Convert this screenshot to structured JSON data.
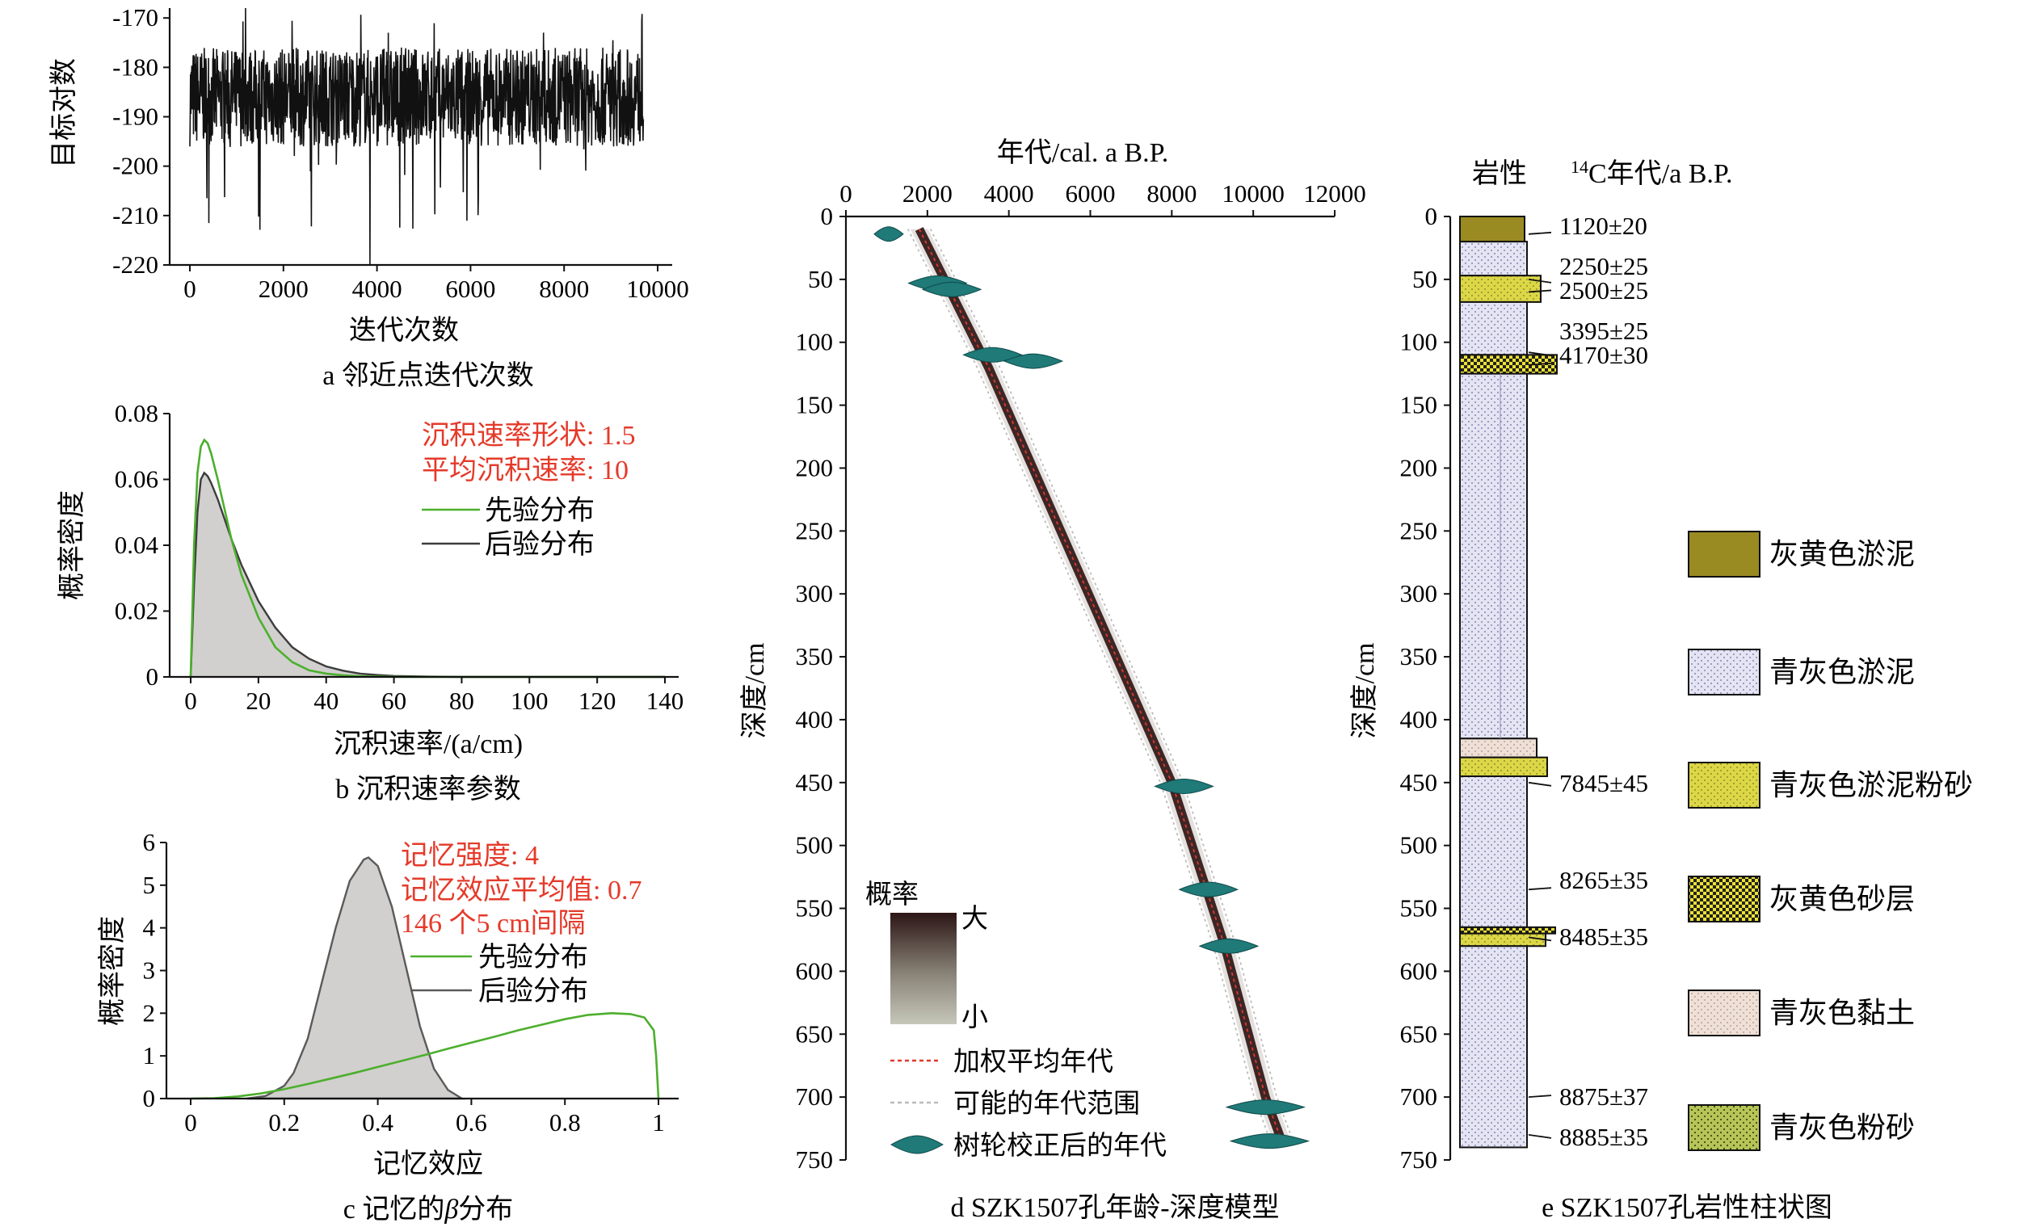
{
  "chart_data": [
    {
      "panel": "a",
      "type": "line",
      "caption": "a 邻近点迭代次数",
      "xlabel": "迭代次数",
      "ylabel": "目标对数",
      "xlim": [
        0,
        10000
      ],
      "ylim": [
        -220,
        -168
      ],
      "xticks": [
        0,
        2000,
        4000,
        6000,
        8000,
        10000
      ],
      "yticks": [
        -220,
        -210,
        -200,
        -190,
        -180,
        -170
      ],
      "trace": {
        "n_iterations": 9700,
        "typical_range": [
          -196,
          -176
        ],
        "mean": -186,
        "max": -168,
        "min": -220
      },
      "color": "#111111"
    },
    {
      "panel": "b",
      "type": "area",
      "caption": "b 沉积速率参数",
      "xlabel": "沉积速率/(a/cm)",
      "ylabel": "概率密度",
      "xlim": [
        0,
        140
      ],
      "ylim": [
        0,
        0.08
      ],
      "xticks": [
        0,
        20,
        40,
        60,
        80,
        100,
        120,
        140
      ],
      "yticks": [
        0,
        0.02,
        0.04,
        0.06,
        0.08
      ],
      "annotations": [
        "沉积速率形状: 1.5",
        "平均沉积速率: 10"
      ],
      "legend": [
        "先验分布",
        "后验分布"
      ],
      "x": [
        0,
        1,
        2,
        3,
        4,
        5,
        6,
        8,
        10,
        12,
        15,
        20,
        25,
        30,
        35,
        40,
        45,
        50,
        55,
        60,
        70,
        80,
        100,
        120,
        140
      ],
      "series": [
        {
          "name": "先验分布",
          "color": "#4caf2d",
          "values": [
            0,
            0.04,
            0.062,
            0.07,
            0.072,
            0.071,
            0.068,
            0.06,
            0.051,
            0.042,
            0.031,
            0.018,
            0.009,
            0.0045,
            0.002,
            0.001,
            0.0005,
            0.0002,
            0.0001,
            5e-05,
            0,
            0,
            0,
            0,
            0
          ]
        },
        {
          "name": "后验分布",
          "color": "#3c3c3c",
          "fill": "#d1d0ce",
          "values": [
            0,
            0.028,
            0.05,
            0.06,
            0.062,
            0.061,
            0.059,
            0.054,
            0.048,
            0.042,
            0.034,
            0.023,
            0.015,
            0.009,
            0.0055,
            0.0032,
            0.0019,
            0.001,
            0.0006,
            0.0003,
            0.0001,
            0,
            0,
            0,
            0
          ]
        }
      ]
    },
    {
      "panel": "c",
      "type": "area",
      "caption_prefix": "c 记忆的",
      "caption_beta": "β",
      "caption_suffix": "分布",
      "xlabel": "记忆效应",
      "ylabel": "概率密度",
      "xlim": [
        0,
        1
      ],
      "ylim": [
        0,
        6
      ],
      "xticks": [
        0,
        0.2,
        0.4,
        0.6,
        0.8,
        1.0
      ],
      "yticks": [
        0,
        1,
        2,
        3,
        4,
        5,
        6
      ],
      "annotations": [
        "记忆强度: 4",
        "记忆效应平均值: 0.7",
        "146 个5 cm间隔"
      ],
      "legend": [
        "先验分布",
        "后验分布"
      ],
      "series": [
        {
          "name": "先验分布",
          "color": "#4caf2d",
          "x": [
            0,
            0.05,
            0.1,
            0.15,
            0.2,
            0.25,
            0.3,
            0.35,
            0.4,
            0.45,
            0.5,
            0.55,
            0.6,
            0.65,
            0.7,
            0.75,
            0.8,
            0.85,
            0.9,
            0.94,
            0.97,
            0.99,
            0.995,
            1.0
          ],
          "values": [
            0,
            0.01,
            0.05,
            0.12,
            0.22,
            0.34,
            0.47,
            0.6,
            0.74,
            0.88,
            1.02,
            1.17,
            1.31,
            1.45,
            1.6,
            1.73,
            1.86,
            1.96,
            2.0,
            1.98,
            1.9,
            1.6,
            1.0,
            0
          ]
        },
        {
          "name": "后验分布",
          "color": "#5a5a5a",
          "fill": "#d1d0ce",
          "x": [
            0.12,
            0.16,
            0.2,
            0.22,
            0.25,
            0.28,
            0.31,
            0.34,
            0.37,
            0.38,
            0.4,
            0.43,
            0.46,
            0.49,
            0.52,
            0.55,
            0.58
          ],
          "values": [
            0,
            0.06,
            0.3,
            0.6,
            1.4,
            2.7,
            4.0,
            5.1,
            5.6,
            5.65,
            5.45,
            4.5,
            3.1,
            1.7,
            0.7,
            0.2,
            0
          ]
        }
      ]
    },
    {
      "panel": "d",
      "type": "line",
      "caption": "d SZK1507孔年龄-深度模型",
      "xlabel": "年代/cal. a B.P.",
      "ylabel": "深度/cm",
      "xlim": [
        0,
        12000
      ],
      "ylim": [
        0,
        750
      ],
      "xticks": [
        0,
        2000,
        4000,
        6000,
        8000,
        10000,
        12000
      ],
      "yticks": [
        0,
        50,
        100,
        150,
        200,
        250,
        300,
        350,
        400,
        450,
        500,
        550,
        600,
        650,
        700,
        750
      ],
      "model": {
        "depth": [
          10,
          120,
          450,
          540,
          580,
          700,
          735
        ],
        "age": [
          1800,
          3500,
          8000,
          8900,
          9300,
          10300,
          10700
        ]
      },
      "dated_ages": [
        {
          "depth": 14,
          "age": 1050
        },
        {
          "depth": 53,
          "age": 2250
        },
        {
          "depth": 58,
          "age": 2600
        },
        {
          "depth": 110,
          "age": 3600
        },
        {
          "depth": 115,
          "age": 4600
        },
        {
          "depth": 453,
          "age": 8300
        },
        {
          "depth": 535,
          "age": 8900
        },
        {
          "depth": 580,
          "age": 9400
        },
        {
          "depth": 708,
          "age": 10300
        },
        {
          "depth": 735,
          "age": 10400
        }
      ],
      "legend": {
        "prob_title": "概率",
        "prob_high": "大",
        "prob_low": "小",
        "items": [
          "加权平均年代",
          "可能的年代范围",
          "树轮校正后的年代"
        ]
      },
      "colors": {
        "band": "#3d2625",
        "mean": "#e0392b",
        "range": "#bbbbbb",
        "dated": "#1f7a78"
      }
    },
    {
      "panel": "e",
      "type": "table",
      "caption": "e SZK1507孔岩性柱状图",
      "col_title_lith": "岩性",
      "col_title_age_sup": "14",
      "col_title_age": "C年代/a B.P.",
      "ylabel": "深度/cm",
      "ylim": [
        0,
        750
      ],
      "yticks": [
        0,
        50,
        100,
        150,
        200,
        250,
        300,
        350,
        400,
        450,
        500,
        550,
        600,
        650,
        700,
        750
      ],
      "layers": [
        {
          "top": 0,
          "bottom": 20,
          "type": "灰黄色淤泥"
        },
        {
          "top": 20,
          "bottom": 47,
          "type": "青灰色淤泥"
        },
        {
          "top": 47,
          "bottom": 68,
          "type": "青灰色淤泥粉砂"
        },
        {
          "top": 68,
          "bottom": 110,
          "type": "青灰色淤泥"
        },
        {
          "top": 110,
          "bottom": 125,
          "type": "灰黄色砂层"
        },
        {
          "top": 125,
          "bottom": 415,
          "type": "青灰色淤泥"
        },
        {
          "top": 415,
          "bottom": 430,
          "type": "青灰色黏土"
        },
        {
          "top": 430,
          "bottom": 445,
          "type": "青灰色淤泥粉砂"
        },
        {
          "top": 445,
          "bottom": 565,
          "type": "青灰色淤泥"
        },
        {
          "top": 565,
          "bottom": 570,
          "type": "灰黄色砂层"
        },
        {
          "top": 570,
          "bottom": 580,
          "type": "青灰色淤泥粉砂"
        },
        {
          "top": 580,
          "bottom": 740,
          "type": "青灰色淤泥"
        }
      ],
      "ages": [
        {
          "depth": 14,
          "label": "1120±20"
        },
        {
          "depth": 50,
          "label": "2250±25"
        },
        {
          "depth": 60,
          "label": "2500±25"
        },
        {
          "depth": 108,
          "label": "3395±25"
        },
        {
          "depth": 118,
          "label": "4170±30"
        },
        {
          "depth": 450,
          "label": "7845±45"
        },
        {
          "depth": 535,
          "label": "8265±35"
        },
        {
          "depth": 573,
          "label": "8485±35"
        },
        {
          "depth": 700,
          "label": "8875±37"
        },
        {
          "depth": 730,
          "label": "8885±35"
        }
      ],
      "legend": [
        {
          "label": "灰黄色淤泥",
          "pattern": "olive"
        },
        {
          "label": "青灰色淤泥",
          "pattern": "lavender"
        },
        {
          "label": "青灰色淤泥粉砂",
          "pattern": "yellow"
        },
        {
          "label": "灰黄色砂层",
          "pattern": "checker"
        },
        {
          "label": "青灰色黏土",
          "pattern": "clay"
        },
        {
          "label": "青灰色粉砂",
          "pattern": "silt"
        }
      ]
    }
  ]
}
